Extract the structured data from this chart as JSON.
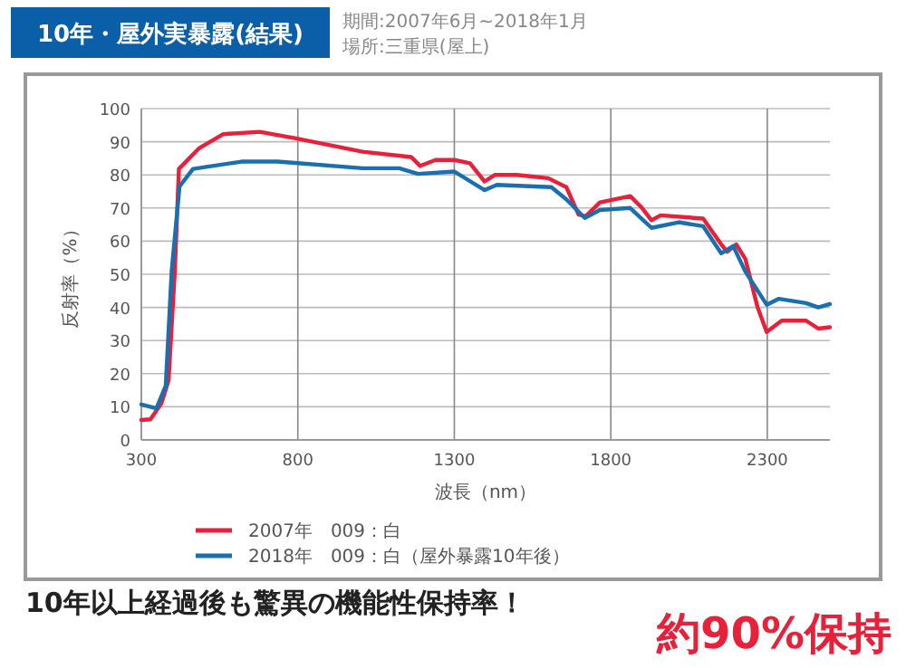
{
  "chart_data": {
    "type": "line",
    "title": "10年・屋外実暴露(結果)",
    "subtitle": "期間:2007年6月~2018年1月",
    "annotations": [
      "場所:三重県(屋上)",
      "10年以上経過後も驚異の機能性保持率！",
      "約90%保持"
    ],
    "xlabel": "波長（nm）",
    "ylabel": "反射率（%）",
    "xlim": [
      300,
      2500
    ],
    "xticks": [
      300,
      800,
      1300,
      1800,
      2300
    ],
    "ylim": [
      0,
      100
    ],
    "yticks": [
      0,
      10,
      20,
      30,
      40,
      50,
      60,
      70,
      80,
      90,
      100
    ],
    "grid": true,
    "legend": "bottom",
    "line_style": "solid",
    "series": [
      {
        "name": "2007年　009：白",
        "color": "#e8213a",
        "x": [
          300,
          329,
          364,
          387,
          407,
          420,
          484,
          562,
          678,
          794,
          1007,
          1162,
          1191,
          1240,
          1300,
          1350,
          1397,
          1430,
          1500,
          1600,
          1658,
          1697,
          1720,
          1765,
          1862,
          1900,
          1930,
          1959,
          2095,
          2153,
          2172,
          2201,
          2230,
          2269,
          2298,
          2346,
          2424,
          2463,
          2500
        ],
        "values": [
          6,
          6.2,
          11,
          18,
          51,
          81.8,
          88,
          92.3,
          93,
          91,
          87,
          85.4,
          82.7,
          84.5,
          84.5,
          83.5,
          78,
          80,
          80,
          79,
          76.3,
          68,
          67.5,
          71.7,
          73.6,
          70,
          66.3,
          67.8,
          66.8,
          59,
          56.8,
          59,
          54.6,
          40,
          32.6,
          36,
          36,
          33.6,
          34
        ]
      },
      {
        "name": "2018年　009：白（屋外暴露10年後）",
        "color": "#1a6faf",
        "x": [
          300,
          348,
          378,
          397,
          422,
          465,
          620,
          736,
          1007,
          1124,
          1184,
          1300,
          1397,
          1436,
          1610,
          1658,
          1717,
          1765,
          1862,
          1930,
          2017,
          2095,
          2153,
          2191,
          2230,
          2298,
          2337,
          2424,
          2463,
          2500
        ],
        "values": [
          10.7,
          9.5,
          16.4,
          51,
          76.5,
          81.8,
          84,
          84,
          82,
          82,
          80.3,
          81,
          75.4,
          77,
          76.3,
          72.6,
          67,
          69.4,
          70,
          64,
          65.7,
          64.5,
          56.3,
          58.5,
          50.8,
          40.8,
          42.6,
          41.3,
          40,
          41
        ]
      }
    ]
  }
}
